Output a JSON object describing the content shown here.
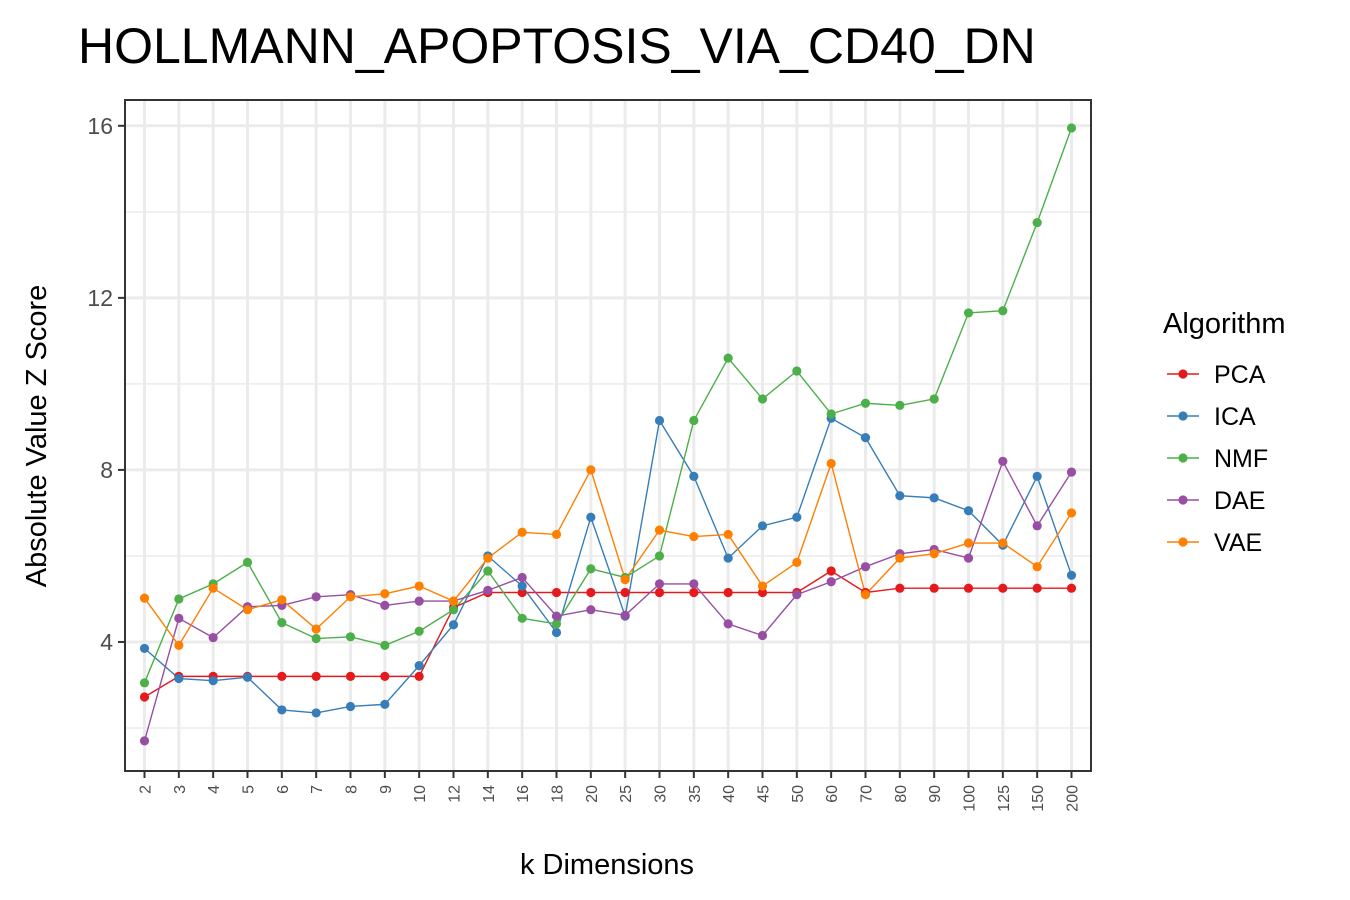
{
  "chart_data": {
    "type": "line",
    "title": "HOLLMANN_APOPTOSIS_VIA_CD40_DN",
    "xlabel": "k Dimensions",
    "ylabel": "Absolute Value Z Score",
    "categories": [
      "2",
      "3",
      "4",
      "5",
      "6",
      "7",
      "8",
      "9",
      "10",
      "12",
      "14",
      "16",
      "18",
      "20",
      "25",
      "30",
      "35",
      "40",
      "45",
      "50",
      "60",
      "70",
      "80",
      "90",
      "100",
      "125",
      "150",
      "200"
    ],
    "yticks": [
      4,
      8,
      12,
      16
    ],
    "ylim": [
      1.0,
      16.6
    ],
    "grid": true,
    "legend": {
      "title": "Algorithm",
      "position": "right"
    },
    "series": [
      {
        "name": "PCA",
        "color": "#e41a1c",
        "values": [
          2.72,
          3.2,
          3.2,
          3.2,
          3.2,
          3.2,
          3.2,
          3.2,
          3.2,
          4.8,
          5.15,
          5.15,
          5.15,
          5.15,
          5.15,
          5.15,
          5.15,
          5.15,
          5.15,
          5.15,
          5.65,
          5.15,
          5.25,
          5.25,
          5.25,
          5.25,
          5.25,
          5.25
        ]
      },
      {
        "name": "ICA",
        "color": "#377eb8",
        "values": [
          3.85,
          3.15,
          3.1,
          3.18,
          2.42,
          2.35,
          2.5,
          2.55,
          3.45,
          4.4,
          6.0,
          5.3,
          4.22,
          6.9,
          4.6,
          9.15,
          7.85,
          5.95,
          6.7,
          6.9,
          9.2,
          8.75,
          7.4,
          7.35,
          7.05,
          6.25,
          7.85,
          5.55
        ]
      },
      {
        "name": "NMF",
        "color": "#4daf4a",
        "values": [
          3.05,
          5.0,
          5.35,
          5.85,
          4.45,
          4.08,
          4.12,
          3.92,
          4.25,
          4.75,
          5.65,
          4.55,
          4.42,
          5.7,
          5.5,
          6.0,
          9.15,
          10.6,
          9.65,
          10.3,
          9.3,
          9.55,
          9.5,
          9.65,
          11.65,
          11.7,
          13.75,
          15.95
        ]
      },
      {
        "name": "DAE",
        "color": "#984ea3",
        "values": [
          1.7,
          4.55,
          4.1,
          4.82,
          4.85,
          5.05,
          5.1,
          4.85,
          4.95,
          4.95,
          5.2,
          5.5,
          4.6,
          4.75,
          4.62,
          5.35,
          5.35,
          4.42,
          4.15,
          5.1,
          5.4,
          5.75,
          6.05,
          6.15,
          5.95,
          8.2,
          6.7,
          7.95
        ]
      },
      {
        "name": "VAE",
        "color": "#ff7f00",
        "values": [
          5.02,
          3.92,
          5.25,
          4.75,
          4.98,
          4.3,
          5.05,
          5.12,
          5.3,
          4.95,
          5.95,
          6.55,
          6.5,
          8.0,
          5.45,
          6.6,
          6.45,
          6.5,
          5.3,
          5.85,
          8.15,
          5.1,
          5.95,
          6.05,
          6.3,
          6.3,
          5.75,
          7.0
        ]
      }
    ]
  }
}
